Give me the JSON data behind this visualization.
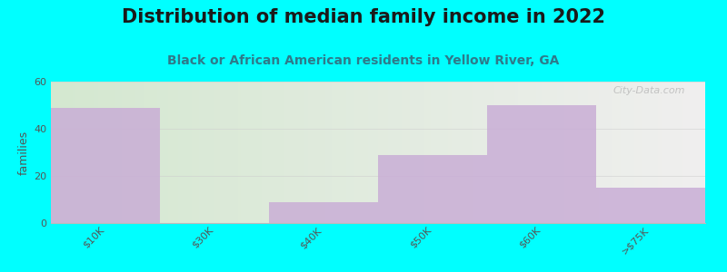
{
  "title": "Distribution of median family income in 2022",
  "subtitle": "Black or African American residents in Yellow River, GA",
  "categories": [
    "$10K",
    "$30K",
    "$40K",
    "$50K",
    "$60K",
    ">$75K"
  ],
  "values": [
    49,
    0,
    9,
    29,
    50,
    15
  ],
  "bar_color": "#c9aed6",
  "background_color": "#00ffff",
  "plot_bg_left": "#d4e8d0",
  "plot_bg_right": "#f0efef",
  "ylabel": "families",
  "ylim": [
    0,
    60
  ],
  "yticks": [
    0,
    20,
    40,
    60
  ],
  "title_fontsize": 15,
  "subtitle_fontsize": 10,
  "tick_label_fontsize": 8,
  "ylabel_fontsize": 9,
  "watermark": "City-Data.com",
  "title_color": "#1a1a1a",
  "subtitle_color": "#2e7a8a",
  "tick_color": "#555555",
  "ylabel_color": "#555555"
}
